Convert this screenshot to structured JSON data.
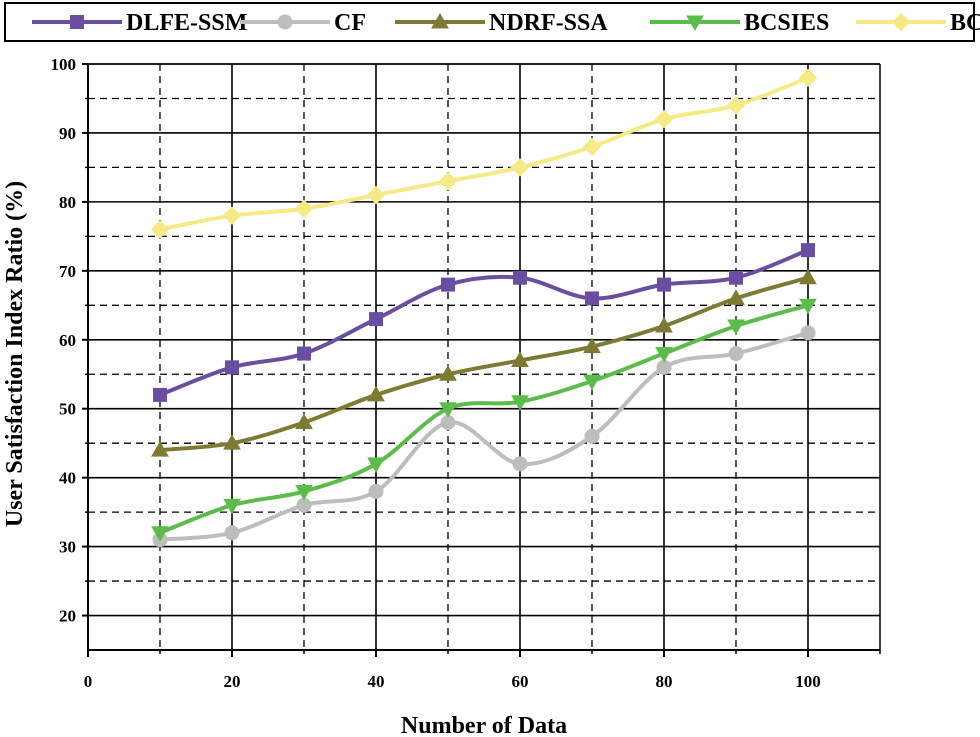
{
  "chart_data": {
    "type": "line",
    "title": "",
    "xlabel": "Number of Data",
    "ylabel": "User Satisfaction Index Ratio (%)",
    "xlim": [
      0,
      110
    ],
    "ylim": [
      15,
      100
    ],
    "x_ticks": [
      0,
      20,
      40,
      60,
      80,
      100
    ],
    "y_ticks": [
      20,
      30,
      40,
      50,
      60,
      70,
      80,
      90,
      100
    ],
    "grid": true,
    "legend_position": "top",
    "x": [
      10,
      20,
      30,
      40,
      50,
      60,
      70,
      80,
      90,
      100
    ],
    "series": [
      {
        "name": "DLFE-SSM",
        "color": "#6a4fa0",
        "marker": "square",
        "values": [
          52,
          56,
          58,
          63,
          68,
          69,
          66,
          68,
          69,
          73
        ]
      },
      {
        "name": "CF",
        "color": "#bdbdbd",
        "marker": "circle",
        "values": [
          31,
          32,
          36,
          38,
          48,
          42,
          46,
          56,
          58,
          61
        ]
      },
      {
        "name": "NDRF-SSA",
        "color": "#7d7a34",
        "marker": "triangle-up",
        "values": [
          44,
          45,
          48,
          52,
          55,
          57,
          59,
          62,
          66,
          69
        ]
      },
      {
        "name": "BCSIES",
        "color": "#5cbc4b",
        "marker": "triangle-down",
        "values": [
          32,
          36,
          38,
          42,
          50,
          51,
          54,
          58,
          62,
          65
        ]
      },
      {
        "name": "BCEPP",
        "color": "#f5ea86",
        "marker": "diamond",
        "values": [
          76,
          78,
          79,
          81,
          83,
          85,
          88,
          92,
          94,
          98
        ]
      }
    ]
  }
}
